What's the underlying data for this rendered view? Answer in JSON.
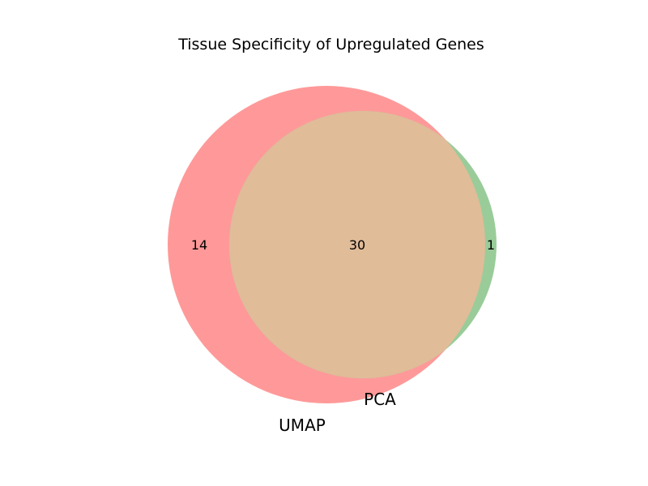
{
  "title": "Tissue Specificity of Upregulated Genes",
  "sets": {
    "a": {
      "label": "UMAP",
      "color": "#ff9999",
      "only_count": "14"
    },
    "b": {
      "label": "PCA",
      "color": "#99cc99",
      "only_count": "1"
    },
    "overlap": {
      "color": "#e0bc99",
      "count": "30"
    }
  }
}
